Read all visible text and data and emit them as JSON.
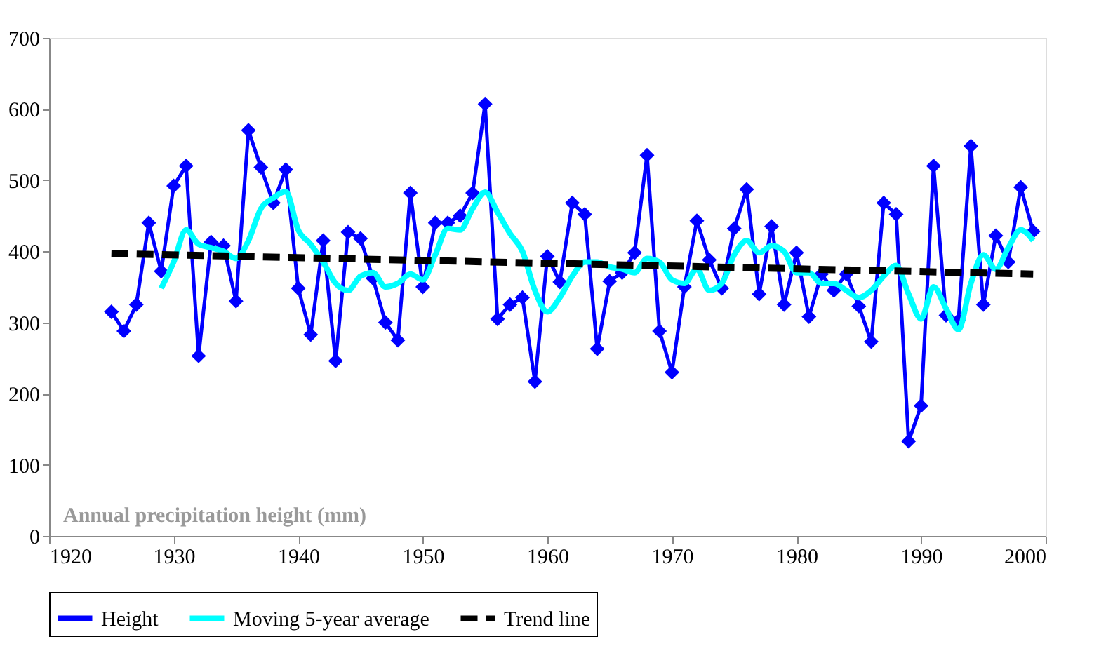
{
  "chart_data": {
    "type": "line",
    "annotations": [
      "Annual precipitation height (mm)"
    ],
    "x": [
      1925,
      1926,
      1927,
      1928,
      1929,
      1930,
      1931,
      1932,
      1933,
      1934,
      1935,
      1936,
      1937,
      1938,
      1939,
      1940,
      1941,
      1942,
      1943,
      1944,
      1945,
      1946,
      1947,
      1948,
      1949,
      1950,
      1951,
      1952,
      1953,
      1954,
      1955,
      1956,
      1957,
      1958,
      1959,
      1960,
      1961,
      1962,
      1963,
      1964,
      1965,
      1966,
      1967,
      1968,
      1969,
      1970,
      1971,
      1972,
      1973,
      1974,
      1975,
      1976,
      1977,
      1978,
      1979,
      1980,
      1981,
      1982,
      1983,
      1984,
      1985,
      1986,
      1987,
      1988,
      1989,
      1990,
      1991,
      1992,
      1993,
      1994,
      1995,
      1996,
      1997,
      1998,
      1999
    ],
    "series": [
      {
        "name": "Height",
        "color": "#0000ff",
        "marker": "diamond",
        "line_style": "solid",
        "values": [
          315,
          288,
          325,
          440,
          372,
          492,
          520,
          253,
          413,
          408,
          330,
          570,
          518,
          468,
          515,
          348,
          283,
          415,
          246,
          427,
          418,
          362,
          300,
          275,
          482,
          350,
          440,
          440,
          450,
          482,
          607,
          305,
          325,
          335,
          217,
          393,
          357,
          468,
          452,
          263,
          358,
          370,
          398,
          535,
          288,
          230,
          350,
          443,
          388,
          348,
          432,
          487,
          340,
          435,
          325,
          398,
          308,
          368,
          345,
          368,
          323,
          273,
          468,
          452,
          133,
          183,
          520,
          310,
          303,
          548,
          325,
          422,
          385,
          490,
          428
        ]
      },
      {
        "name": "Moving 5-year average",
        "color": "#00ffff",
        "marker": "none",
        "line_style": "solid",
        "x": [
          1929,
          1930,
          1931,
          1932,
          1933,
          1934,
          1935,
          1936,
          1937,
          1938,
          1939,
          1940,
          1941,
          1942,
          1943,
          1944,
          1945,
          1946,
          1947,
          1948,
          1949,
          1950,
          1951,
          1952,
          1953,
          1954,
          1955,
          1956,
          1957,
          1958,
          1959,
          1960,
          1961,
          1962,
          1963,
          1964,
          1965,
          1966,
          1967,
          1968,
          1969,
          1970,
          1971,
          1972,
          1973,
          1974,
          1975,
          1976,
          1977,
          1978,
          1979,
          1980,
          1981,
          1982,
          1983,
          1984,
          1985,
          1986,
          1987,
          1988,
          1989,
          1990,
          1991,
          1992,
          1993,
          1994,
          1995,
          1996,
          1997,
          1998,
          1999
        ],
        "values": [
          348,
          385,
          430,
          410,
          405,
          400,
          390,
          415,
          460,
          475,
          484,
          430,
          410,
          385,
          355,
          345,
          365,
          370,
          350,
          355,
          368,
          360,
          395,
          432,
          430,
          460,
          483,
          455,
          425,
          400,
          345,
          315,
          335,
          365,
          385,
          385,
          378,
          375,
          370,
          390,
          385,
          360,
          355,
          375,
          345,
          355,
          395,
          415,
          398,
          408,
          400,
          370,
          370,
          355,
          355,
          345,
          335,
          345,
          365,
          380,
          340,
          305,
          350,
          320,
          290,
          355,
          395,
          375,
          405,
          430,
          415
        ]
      },
      {
        "name": "Trend line",
        "color": "#000000",
        "marker": "none",
        "line_style": "dashed",
        "x": [
          1925,
          1999
        ],
        "values": [
          397,
          368
        ]
      }
    ],
    "xlim": [
      1920,
      2000
    ],
    "xticks": [
      1920,
      1930,
      1940,
      1950,
      1960,
      1970,
      1980,
      1990,
      2000
    ],
    "ylim": [
      0,
      700
    ],
    "yticks": [
      0,
      100,
      200,
      300,
      400,
      500,
      600,
      700
    ],
    "grid": false,
    "legend": "bottom"
  }
}
